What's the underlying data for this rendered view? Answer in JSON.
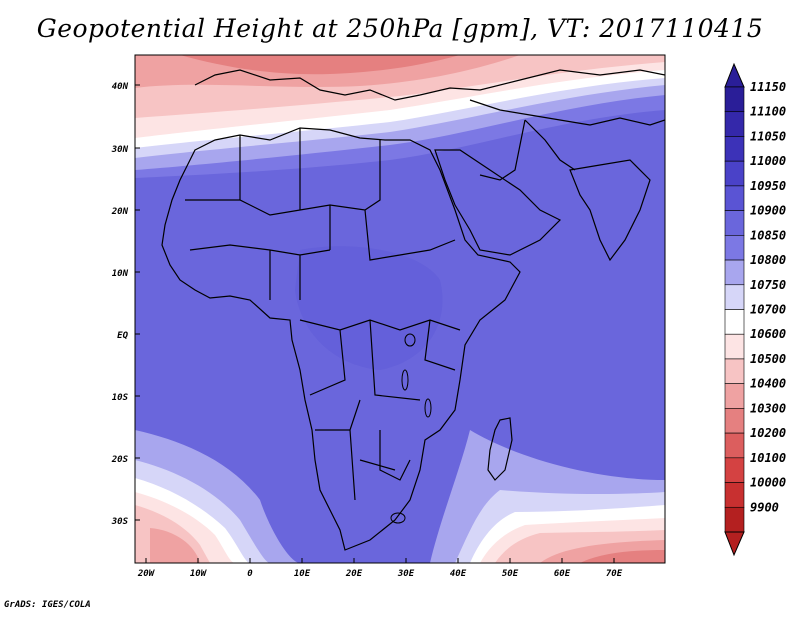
{
  "title": "Geopotential Height at 250hPa [gpm], VT: 2017110415",
  "credit": "GrADS: IGES/COLA",
  "lat_labels": [
    "40N",
    "30N",
    "20N",
    "10N",
    "EQ",
    "10S",
    "20S",
    "30S"
  ],
  "lon_labels": [
    "20W",
    "10W",
    "0",
    "10E",
    "20E",
    "30E",
    "40E",
    "50E",
    "60E",
    "70E"
  ],
  "legend": {
    "levels": [
      "11150",
      "11100",
      "11050",
      "11000",
      "10950",
      "10900",
      "10850",
      "10800",
      "10750",
      "10700",
      "10600",
      "10500",
      "10400",
      "10300",
      "10200",
      "10100",
      "10000",
      "9900"
    ],
    "colors": [
      "#2a1e98",
      "#3428aa",
      "#3c32b8",
      "#4a42c8",
      "#5a54d4",
      "#6a66dc",
      "#7c78e4",
      "#a8a6ee",
      "#d6d6f8",
      "#ffffff",
      "#fde4e4",
      "#f7c4c4",
      "#efa2a2",
      "#e58080",
      "#dc5e5e",
      "#d44242",
      "#c83030",
      "#b42020"
    ]
  },
  "colors": {
    "mid_blue": "#6a66dc",
    "light_blue": "#a8a6ee",
    "pale_red": "#f7c4c4",
    "red": "#e08080",
    "deep_red": "#cc4a4a"
  }
}
